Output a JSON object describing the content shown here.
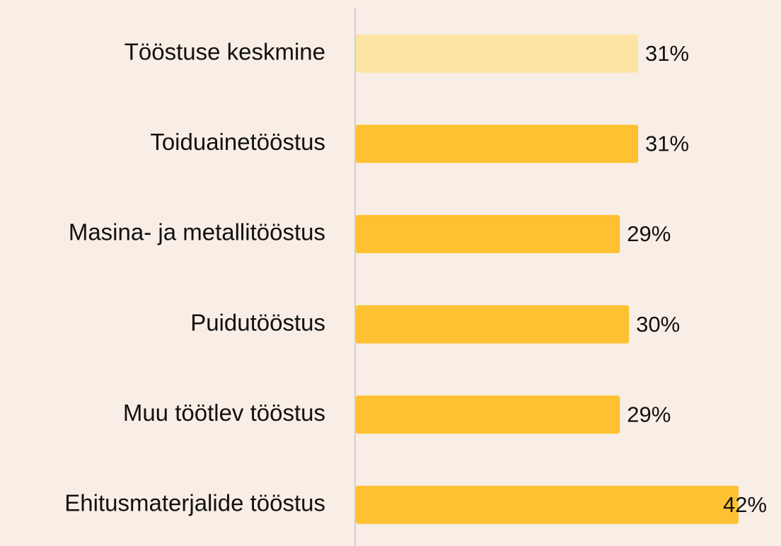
{
  "chart_data": {
    "type": "hbar",
    "categories": [
      "Tööstuse keskmine",
      "Toiduainetööstus",
      "Masina- ja metallitööstus",
      "Puidutööstus",
      "Muu töötlev tööstus",
      "Ehitusmaterjalide tööstus"
    ],
    "values": [
      31,
      31,
      29,
      30,
      29,
      42
    ],
    "value_labels": [
      "31%",
      "31%",
      "29%",
      "30%",
      "29%",
      "42%"
    ],
    "colors": [
      "#fde4a4",
      "#fdc131",
      "#fdc131",
      "#fdc131",
      "#fdc131",
      "#fdc131"
    ]
  }
}
